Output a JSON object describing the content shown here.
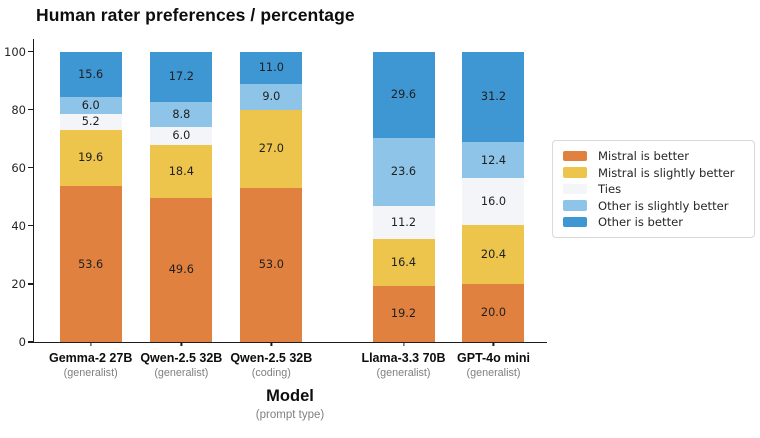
{
  "chart_data": {
    "type": "bar",
    "stacked": true,
    "title": "Human rater preferences / percentage",
    "xlabel": "Model",
    "xlabel_sub": "(prompt type)",
    "ylim": [
      0,
      100
    ],
    "yticks": [
      0,
      20,
      40,
      60,
      80,
      100
    ],
    "grid": false,
    "legend_position": "right",
    "axis_color": "#1c1c1c",
    "legend_border_color": "#d9d9d9",
    "categories": [
      {
        "label": "Gemma-2 27B",
        "sublabel": "(generalist)"
      },
      {
        "label": "Qwen-2.5 32B",
        "sublabel": "(generalist)"
      },
      {
        "label": "Qwen-2.5 32B",
        "sublabel": "(coding)"
      },
      {
        "label": "Llama-3.3 70B",
        "sublabel": "(generalist)"
      },
      {
        "label": "GPT-4o mini",
        "sublabel": "(generalist)"
      }
    ],
    "x_centers": [
      0.1105,
      0.2872,
      0.4626,
      0.7203,
      0.8957
    ],
    "series": [
      {
        "name": "Mistral is better",
        "color": "#e0813f",
        "values": [
          53.6,
          49.6,
          53.0,
          19.2,
          20.0
        ]
      },
      {
        "name": "Mistral is slightly better",
        "color": "#edc44c",
        "values": [
          19.6,
          18.4,
          27.0,
          16.4,
          20.4
        ]
      },
      {
        "name": "Ties",
        "color": "#f3f5f9",
        "values": [
          5.2,
          6.0,
          0.0,
          11.2,
          16.0
        ]
      },
      {
        "name": "Other is slightly better",
        "color": "#8ec4e8",
        "values": [
          6.0,
          8.8,
          9.0,
          23.6,
          12.4
        ]
      },
      {
        "name": "Other is better",
        "color": "#3e96d3",
        "values": [
          15.6,
          17.2,
          11.0,
          29.6,
          31.2
        ]
      }
    ]
  }
}
